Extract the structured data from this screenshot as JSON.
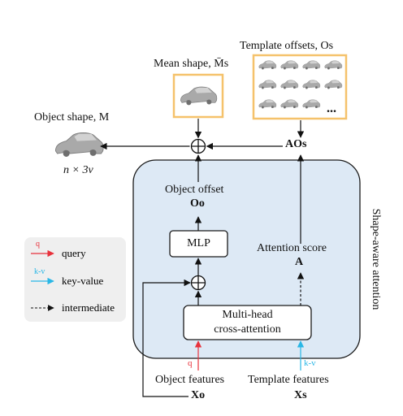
{
  "colors": {
    "panel_fill": "#dde9f5",
    "panel_stroke": "#1a1a1a",
    "thumb_border": "#f5c26b",
    "legend_bg": "#efefef",
    "query_red": "#e8323c",
    "kv_cyan": "#29b7e6",
    "car_fill": "#a9a9a9"
  },
  "labels": {
    "object_shape": "Object shape, M",
    "object_shape_dim": "n × 3v",
    "mean_shape": "Mean shape, M̄s",
    "template_offsets": "Template offsets, Os",
    "ao_s": "AOs",
    "object_offset": "Object offset",
    "o_o": "Oo",
    "mlp": "MLP",
    "attention_score": "Attention score",
    "a": "A",
    "mha_line1": "Multi-head",
    "mha_line2": "cross-attention",
    "panel_title": "Shape-aware attention",
    "q_tag": "q",
    "kv_tag": "k-v",
    "object_features": "Object features",
    "x_o": "Xo",
    "template_features": "Template features",
    "x_s": "Xs",
    "ellipsis": "..."
  },
  "legend": {
    "items": [
      {
        "tag": "q",
        "text": "query",
        "color": "#e8323c"
      },
      {
        "tag": "k-v",
        "text": "key-value",
        "color": "#29b7e6"
      },
      {
        "tag": "",
        "text": "intermediate",
        "color": "#111111"
      }
    ]
  },
  "icons": {
    "car": "car-mesh-icon",
    "sum": "plus-circle-icon"
  }
}
